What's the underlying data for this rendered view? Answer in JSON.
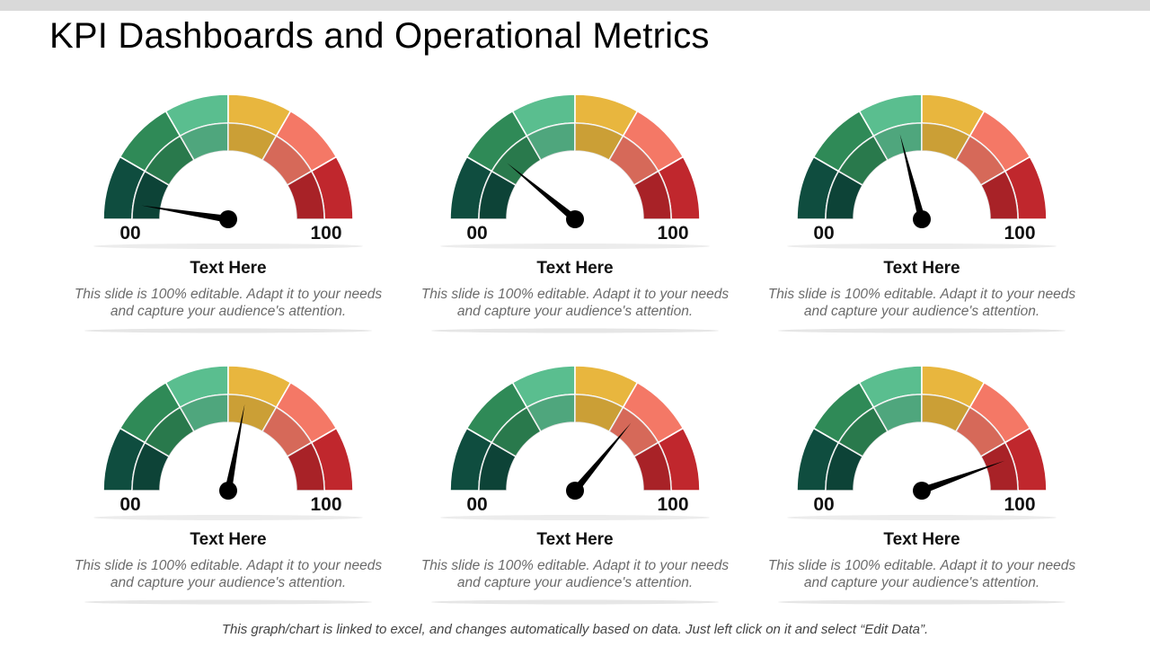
{
  "title": "KPI Dashboards and Operational Metrics",
  "footer": "This graph/chart is linked to excel, and changes automatically based on data. Just left click on it and select “Edit Data”.",
  "gauge_colors": [
    "#0f4d3f",
    "#2f8a57",
    "#5abe8f",
    "#e8b63e",
    "#f47866",
    "#c0272d"
  ],
  "chart_data": [
    {
      "type": "gauge",
      "value": 5,
      "min_label": "00",
      "max_label": "100",
      "range": [
        0,
        100
      ],
      "heading": "Text Here",
      "description": "This slide is 100% editable. Adapt it to your needs and capture your audience's attention."
    },
    {
      "type": "gauge",
      "value": 22,
      "min_label": "00",
      "max_label": "100",
      "range": [
        0,
        100
      ],
      "heading": "Text Here",
      "description": "This slide is 100% editable. Adapt it to your needs and capture your audience's attention."
    },
    {
      "type": "gauge",
      "value": 42,
      "min_label": "00",
      "max_label": "100",
      "range": [
        0,
        100
      ],
      "heading": "Text Here",
      "description": "This slide is 100% editable. Adapt it to your needs and capture your audience's attention."
    },
    {
      "type": "gauge",
      "value": 56,
      "min_label": "00",
      "max_label": "100",
      "range": [
        0,
        100
      ],
      "heading": "Text Here",
      "description": "This slide is 100% editable. Adapt it to your needs and capture your audience's attention."
    },
    {
      "type": "gauge",
      "value": 72,
      "min_label": "00",
      "max_label": "100",
      "range": [
        0,
        100
      ],
      "heading": "Text Here",
      "description": "This slide is 100% editable. Adapt it to your needs and capture your audience's attention."
    },
    {
      "type": "gauge",
      "value": 89,
      "min_label": "00",
      "max_label": "100",
      "range": [
        0,
        100
      ],
      "heading": "Text Here",
      "description": "This slide is 100% editable. Adapt it to your needs and capture your audience's attention."
    }
  ]
}
